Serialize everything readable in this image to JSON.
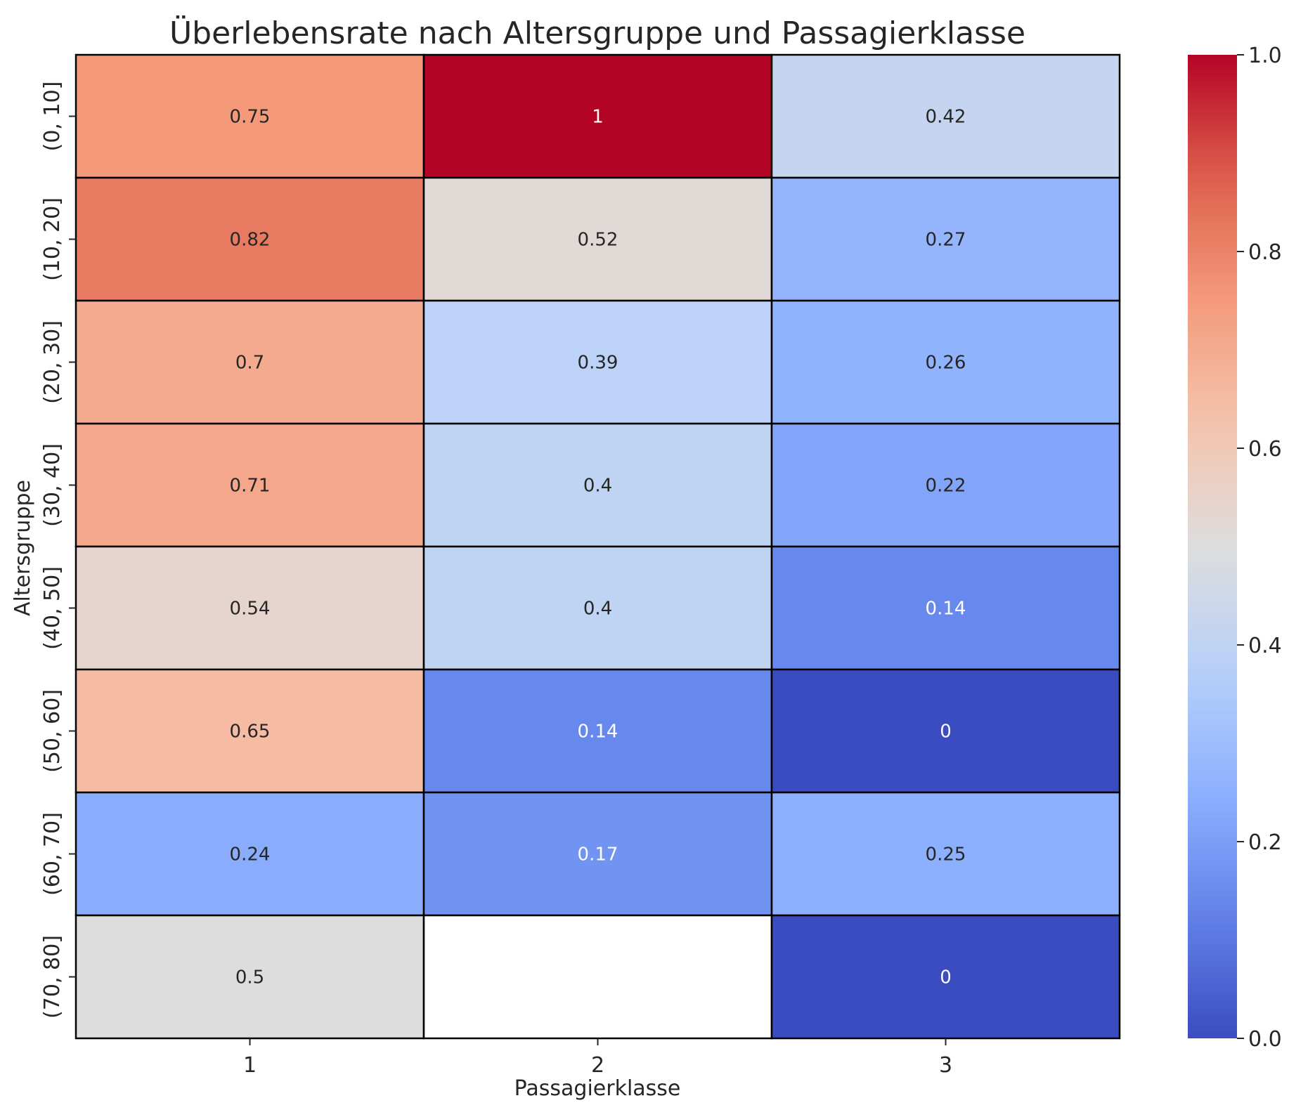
{
  "chart_data": {
    "type": "heatmap",
    "title": "Überlebensrate nach Altersgruppe und Passagierklasse",
    "xlabel": "Passagierklasse",
    "ylabel": "Altersgruppe",
    "x_categories": [
      "1",
      "2",
      "3"
    ],
    "y_categories": [
      "(0, 10]",
      "(10, 20]",
      "(20, 30]",
      "(30, 40]",
      "(40, 50]",
      "(50, 60]",
      "(60, 70]",
      "(70, 80]"
    ],
    "values": [
      [
        0.75,
        1,
        0.42
      ],
      [
        0.82,
        0.52,
        0.27
      ],
      [
        0.7,
        0.39,
        0.26
      ],
      [
        0.71,
        0.4,
        0.22
      ],
      [
        0.54,
        0.4,
        0.14
      ],
      [
        0.65,
        0.14,
        0
      ],
      [
        0.24,
        0.17,
        0.25
      ],
      [
        0.5,
        null,
        0
      ]
    ],
    "value_labels": [
      [
        "0.75",
        "1",
        "0.42"
      ],
      [
        "0.82",
        "0.52",
        "0.27"
      ],
      [
        "0.7",
        "0.39",
        "0.26"
      ],
      [
        "0.71",
        "0.4",
        "0.22"
      ],
      [
        "0.54",
        "0.4",
        "0.14"
      ],
      [
        "0.65",
        "0.14",
        "0"
      ],
      [
        "0.24",
        "0.17",
        "0.25"
      ],
      [
        "0.5",
        "",
        "0"
      ]
    ],
    "colormap": "coolwarm",
    "vmin": 0,
    "vmax": 1,
    "colorbar_ticks": [
      "0.0",
      "0.2",
      "0.4",
      "0.6",
      "0.8",
      "1.0"
    ],
    "cell_border_color": "#000000"
  }
}
